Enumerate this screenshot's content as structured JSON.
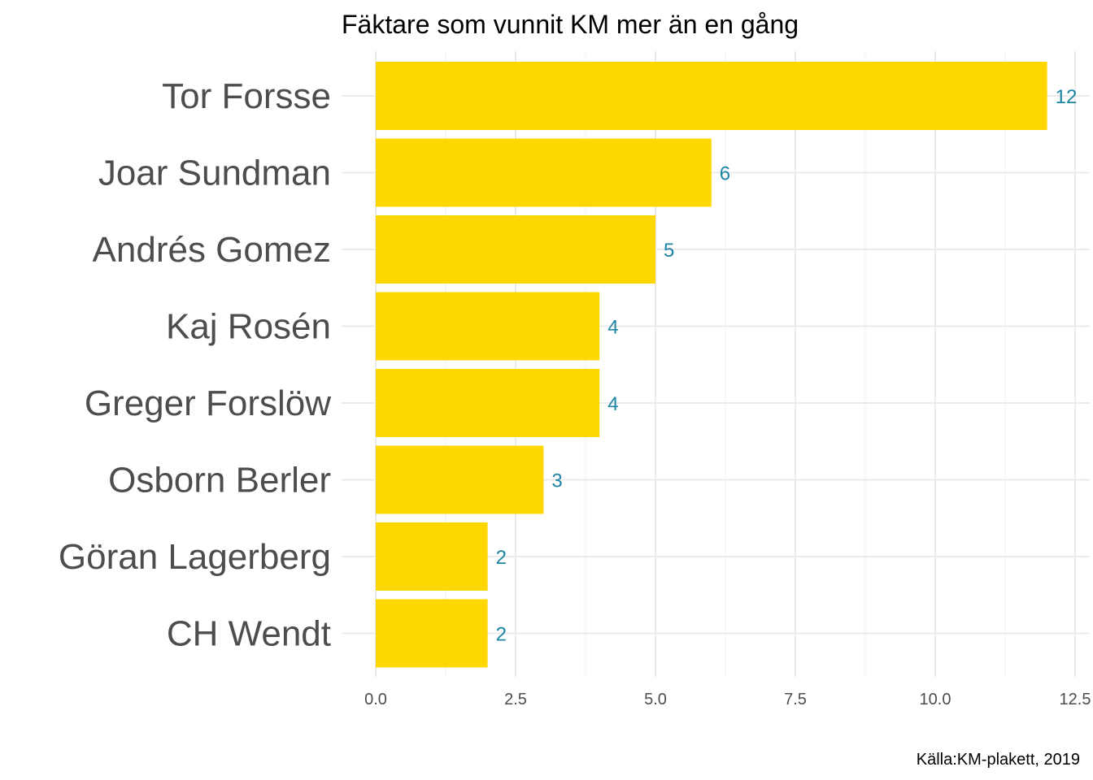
{
  "chart_data": {
    "type": "bar",
    "orientation": "horizontal",
    "title": "Fäktare som vunnit KM mer än en gång",
    "caption": "Källa:KM-plakett, 2019",
    "xlabel": "",
    "ylabel": "",
    "categories": [
      "Tor Forsse",
      "Joar Sundman",
      "Andrés Gomez",
      "Kaj Rosén",
      "Greger Forslöw",
      "Osborn Berler",
      "Göran Lagerberg",
      "CH Wendt"
    ],
    "values": [
      12,
      6,
      5,
      4,
      4,
      3,
      2,
      2
    ],
    "value_labels": [
      "12",
      "6",
      "5",
      "4",
      "4",
      "3",
      "2",
      "2"
    ],
    "x_ticks": [
      0,
      2.5,
      5,
      7.5,
      10,
      12.5
    ],
    "x_tick_labels": [
      "0.0",
      "2.5",
      "5.0",
      "7.5",
      "10.0",
      "12.5"
    ],
    "xlim": [
      0,
      12.5
    ],
    "grid": true,
    "legend": "none",
    "colors": {
      "bar": "#FFD700",
      "data_label": "#1B85A3",
      "grid_major": "#EBEBEB",
      "grid_minor": "#F2F2F2"
    }
  }
}
